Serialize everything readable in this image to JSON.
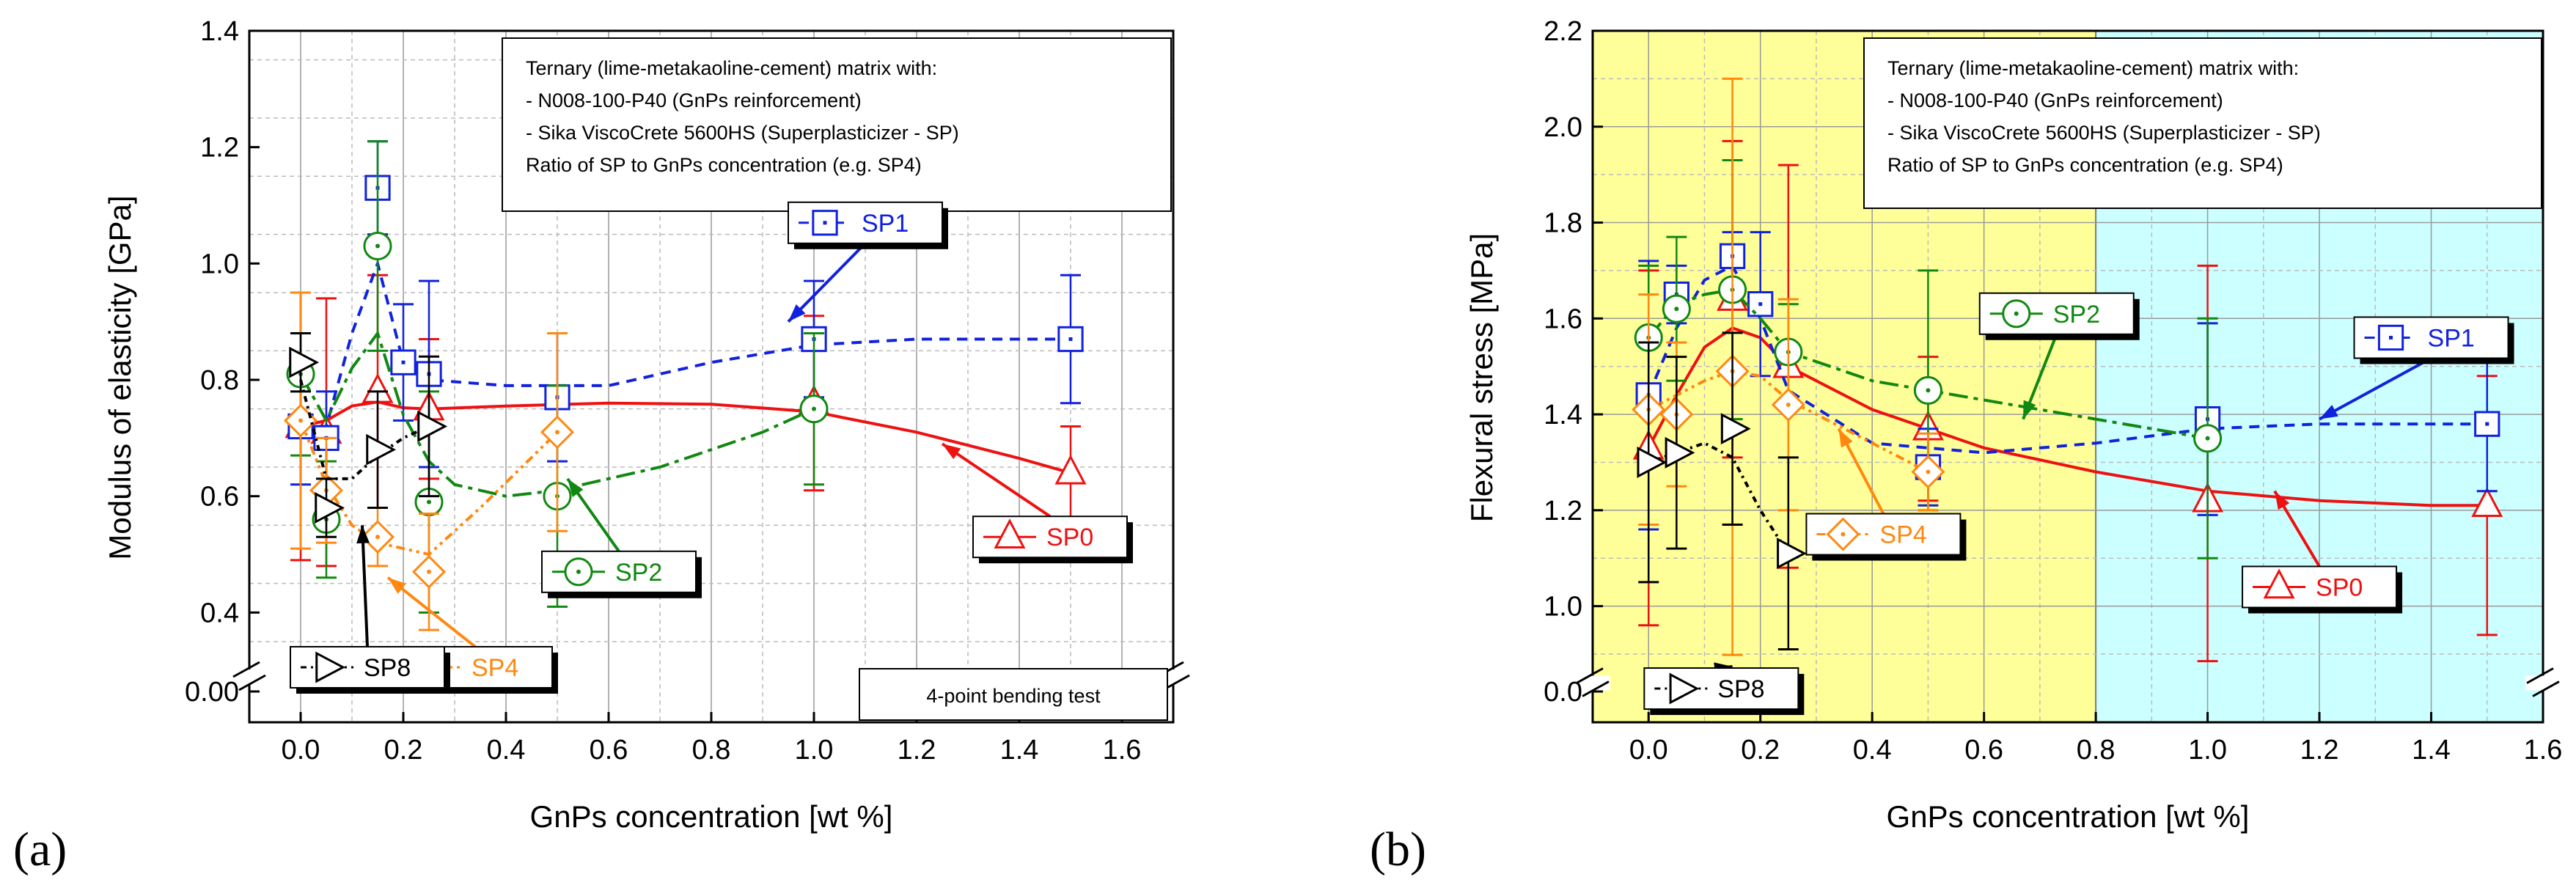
{
  "figure": {
    "panel_labels": [
      "(a)",
      "(b)"
    ]
  },
  "chart_data": [
    {
      "type": "line",
      "panel": "(a)",
      "xlabel": "GnPs concentration [wt %]",
      "ylabel": "Modulus of elasticity [GPa]",
      "xlim": [
        -0.1,
        1.7
      ],
      "ylim": [
        0.0,
        1.4
      ],
      "axis_break": {
        "from": 0.0,
        "to": 0.35
      },
      "xticks": [
        0.0,
        0.2,
        0.4,
        0.6,
        0.8,
        1.0,
        1.2,
        1.4,
        1.6
      ],
      "xtick_labels": [
        "0.0",
        "0.2",
        "0.4",
        "0.6",
        "0.8",
        "1.0",
        "1.2",
        "1.4",
        "1.6"
      ],
      "yticks": [
        0.0,
        0.4,
        0.6,
        0.8,
        1.0,
        1.2,
        1.4
      ],
      "ytick_labels": [
        "0.00",
        "0.4",
        "0.6",
        "0.8",
        "1.0",
        "1.2",
        "1.4"
      ],
      "grid": true,
      "legend_note": [
        "Ternary (lime-metakaoline-cement) matrix with:",
        "- N008-100-P40 (GnPs reinforcement)",
        "- Sika ViscoCrete 5600HS (Superplasticizer - SP)",
        "Ratio of SP to GnPs concentration (e.g. SP4)"
      ],
      "test_label": "4-point bending test",
      "series": [
        {
          "name": "SP0",
          "marker": "triangle-up",
          "color": "#ee1111",
          "dash": "",
          "x": [
            0.0,
            0.05,
            0.15,
            0.25,
            1.0,
            1.5
          ],
          "y": [
            0.72,
            0.71,
            0.78,
            0.75,
            0.76,
            0.64
          ],
          "err": [
            0.23,
            0.23,
            0.2,
            0.12,
            0.15,
            0.08
          ],
          "fit_x": [
            0.0,
            0.05,
            0.1,
            0.15,
            0.2,
            0.25,
            0.4,
            0.6,
            0.8,
            1.0,
            1.2,
            1.4,
            1.5
          ],
          "fit_y": [
            0.72,
            0.73,
            0.755,
            0.762,
            0.752,
            0.75,
            0.755,
            0.76,
            0.758,
            0.745,
            0.71,
            0.665,
            0.64
          ],
          "label": "SP0",
          "label_at": [
            1.46,
            0.53
          ],
          "arrow_to": [
            1.25,
            0.69
          ]
        },
        {
          "name": "SP1",
          "marker": "square",
          "color": "#1122dd",
          "dash": "14 10",
          "x": [
            0.0,
            0.05,
            0.15,
            0.2,
            0.25,
            0.5,
            1.0,
            1.5
          ],
          "y": [
            0.72,
            0.7,
            1.13,
            0.83,
            0.81,
            0.77,
            0.87,
            0.87
          ],
          "err": [
            0.1,
            0.08,
            0.08,
            0.1,
            0.16,
            0.11,
            0.1,
            0.11
          ],
          "fit_x": [
            0.0,
            0.05,
            0.1,
            0.15,
            0.2,
            0.25,
            0.4,
            0.6,
            0.8,
            1.0,
            1.2,
            1.5
          ],
          "fit_y": [
            0.72,
            0.72,
            0.88,
            1.0,
            0.83,
            0.8,
            0.79,
            0.79,
            0.83,
            0.86,
            0.87,
            0.87
          ],
          "label": "SP1",
          "label_at": [
            1.1,
            1.07
          ],
          "arrow_to": [
            0.95,
            0.9
          ]
        },
        {
          "name": "SP2",
          "marker": "circle",
          "color": "#118811",
          "dash": "26 8 6 8",
          "x": [
            0.0,
            0.05,
            0.15,
            0.25,
            0.5,
            1.0
          ],
          "y": [
            0.81,
            0.56,
            1.03,
            0.59,
            0.6,
            0.75
          ],
          "err": [
            0.14,
            0.1,
            0.18,
            0.19,
            0.19,
            0.13
          ],
          "fit_x": [
            0.0,
            0.05,
            0.1,
            0.15,
            0.2,
            0.25,
            0.3,
            0.4,
            0.5,
            0.7,
            0.9,
            1.0
          ],
          "fit_y": [
            0.81,
            0.73,
            0.82,
            0.88,
            0.74,
            0.66,
            0.62,
            0.6,
            0.61,
            0.65,
            0.71,
            0.75
          ],
          "label": "SP2",
          "label_at": [
            0.62,
            0.47
          ],
          "arrow_to": [
            0.52,
            0.63
          ]
        },
        {
          "name": "SP4",
          "marker": "diamond",
          "color": "#ff8811",
          "dash": "12 6 4 6 4 6",
          "x": [
            0.0,
            0.05,
            0.15,
            0.25,
            0.5
          ],
          "y": [
            0.73,
            0.61,
            0.53,
            0.47,
            0.71
          ],
          "err": [
            0.22,
            0.09,
            0.05,
            0.1,
            0.17
          ],
          "fit_x": [
            0.0,
            0.05,
            0.1,
            0.15,
            0.25,
            0.35,
            0.5
          ],
          "fit_y": [
            0.73,
            0.62,
            0.55,
            0.52,
            0.5,
            0.58,
            0.71
          ],
          "label": "SP4",
          "label_at": [
            0.34,
            0.17
          ],
          "arrow_to": [
            0.17,
            0.46
          ]
        },
        {
          "name": "SP8",
          "marker": "triangle-right",
          "color": "#000000",
          "dash": "8 6 3 6",
          "x": [
            0.0,
            0.05,
            0.15,
            0.25
          ],
          "y": [
            0.83,
            0.58,
            0.68,
            0.72
          ],
          "err": [
            0.05,
            0.05,
            0.1,
            0.12
          ],
          "fit_x": [
            0.0,
            0.05,
            0.1,
            0.15,
            0.2,
            0.25
          ],
          "fit_y": [
            0.8,
            0.63,
            0.63,
            0.67,
            0.7,
            0.72
          ],
          "label": "SP8",
          "label_at": [
            0.13,
            0.17
          ],
          "arrow_to": [
            0.12,
            0.55
          ]
        }
      ]
    },
    {
      "type": "line",
      "panel": "(b)",
      "xlabel": "GnPs concentration [wt %]",
      "ylabel": "Flexural stress [MPa]",
      "xlim": [
        -0.1,
        1.6
      ],
      "ylim": [
        0.0,
        2.2
      ],
      "axis_break": {
        "from": 0.0,
        "to": 0.9
      },
      "xticks": [
        0.0,
        0.2,
        0.4,
        0.6,
        0.8,
        1.0,
        1.2,
        1.4,
        1.6
      ],
      "xtick_labels": [
        "0.0",
        "0.2",
        "0.4",
        "0.6",
        "0.8",
        "1.0",
        "1.2",
        "1.4",
        "1.6"
      ],
      "yticks": [
        0.0,
        1.0,
        1.2,
        1.4,
        1.6,
        1.8,
        2.0,
        2.2
      ],
      "ytick_labels": [
        "0.0",
        "1.0",
        "1.2",
        "1.4",
        "1.6",
        "1.8",
        "2.0",
        "2.2"
      ],
      "grid": true,
      "regions": [
        {
          "x_from": -0.1,
          "x_to": 0.8,
          "color": "#ffff99"
        },
        {
          "x_from": 0.8,
          "x_to": 1.6,
          "color": "#ccffff"
        }
      ],
      "legend_note": [
        "Ternary (lime-metakaoline-cement) matrix with:",
        "- N008-100-P40 (GnPs reinforcement)",
        "- Sika ViscoCrete 5600HS (Superplasticizer - SP)",
        "Ratio of SP to GnPs concentration (e.g. SP4)"
      ],
      "series": [
        {
          "name": "SP0",
          "marker": "triangle-up",
          "color": "#ee1111",
          "dash": "",
          "x": [
            0.0,
            0.15,
            0.25,
            0.5,
            1.0,
            1.5
          ],
          "y": [
            1.33,
            1.64,
            1.5,
            1.37,
            1.22,
            1.21
          ],
          "err": [
            0.37,
            0.33,
            0.42,
            0.15,
            0.49,
            0.27
          ],
          "fit_x": [
            0.0,
            0.05,
            0.1,
            0.15,
            0.2,
            0.25,
            0.4,
            0.6,
            0.8,
            1.0,
            1.2,
            1.4,
            1.5
          ],
          "fit_y": [
            1.33,
            1.44,
            1.54,
            1.58,
            1.56,
            1.5,
            1.41,
            1.33,
            1.28,
            1.24,
            1.22,
            1.21,
            1.21
          ],
          "label": "SP0",
          "label_at": [
            1.2,
            1.04
          ],
          "arrow_to": [
            1.12,
            1.24
          ]
        },
        {
          "name": "SP1",
          "marker": "square",
          "color": "#1122dd",
          "dash": "14 10",
          "x": [
            0.0,
            0.05,
            0.15,
            0.2,
            0.5,
            1.0,
            1.5
          ],
          "y": [
            1.44,
            1.65,
            1.73,
            1.63,
            1.29,
            1.39,
            1.38
          ],
          "err": [
            0.28,
            0.06,
            0.05,
            0.15,
            0.08,
            0.2,
            0.14
          ],
          "fit_x": [
            0.0,
            0.05,
            0.1,
            0.15,
            0.2,
            0.25,
            0.4,
            0.6,
            0.8,
            1.0,
            1.2,
            1.5
          ],
          "fit_y": [
            1.44,
            1.58,
            1.68,
            1.71,
            1.6,
            1.45,
            1.34,
            1.32,
            1.34,
            1.37,
            1.38,
            1.38
          ],
          "label": "SP1",
          "label_at": [
            1.4,
            1.56
          ],
          "arrow_to": [
            1.2,
            1.39
          ]
        },
        {
          "name": "SP2",
          "marker": "circle",
          "color": "#118811",
          "dash": "26 8 6 8",
          "x": [
            0.0,
            0.05,
            0.15,
            0.25,
            0.5,
            1.0
          ],
          "y": [
            1.56,
            1.62,
            1.66,
            1.53,
            1.45,
            1.35
          ],
          "err": [
            0.15,
            0.15,
            0.27,
            0.1,
            0.25,
            0.25
          ],
          "fit_x": [
            0.0,
            0.05,
            0.1,
            0.15,
            0.2,
            0.25,
            0.4,
            0.6,
            0.8,
            1.0
          ],
          "fit_y": [
            1.56,
            1.63,
            1.65,
            1.66,
            1.6,
            1.53,
            1.47,
            1.43,
            1.39,
            1.35
          ],
          "label": "SP2",
          "label_at": [
            0.73,
            1.61
          ],
          "arrow_to": [
            0.67,
            1.39
          ]
        },
        {
          "name": "SP4",
          "marker": "diamond",
          "color": "#ff8811",
          "dash": "12 6 4 6 4 6",
          "x": [
            0.0,
            0.05,
            0.15,
            0.25,
            0.5
          ],
          "y": [
            1.41,
            1.4,
            1.49,
            1.42,
            1.28
          ],
          "err": [
            0.24,
            0.15,
            0.61,
            0.22,
            0.08
          ],
          "fit_x": [
            0.0,
            0.05,
            0.1,
            0.15,
            0.2,
            0.25,
            0.35,
            0.5
          ],
          "fit_y": [
            1.41,
            1.44,
            1.47,
            1.49,
            1.48,
            1.43,
            1.37,
            1.28
          ],
          "label": "SP4",
          "label_at": [
            0.42,
            1.15
          ],
          "arrow_to": [
            0.34,
            1.37
          ]
        },
        {
          "name": "SP8",
          "marker": "triangle-right",
          "color": "#000000",
          "dash": "8 6 3 6",
          "x": [
            0.0,
            0.05,
            0.15,
            0.25
          ],
          "y": [
            1.3,
            1.32,
            1.37,
            1.11
          ],
          "err": [
            0.25,
            0.2,
            0.2,
            0.2
          ],
          "fit_x": [
            0.0,
            0.05,
            0.1,
            0.15,
            0.2,
            0.25
          ],
          "fit_y": [
            1.3,
            1.32,
            1.34,
            1.31,
            1.2,
            1.11
          ],
          "label": "SP8",
          "label_at": [
            0.13,
            0.07
          ],
          "arrow_to": [
            0.15,
            0.6
          ]
        }
      ]
    }
  ]
}
